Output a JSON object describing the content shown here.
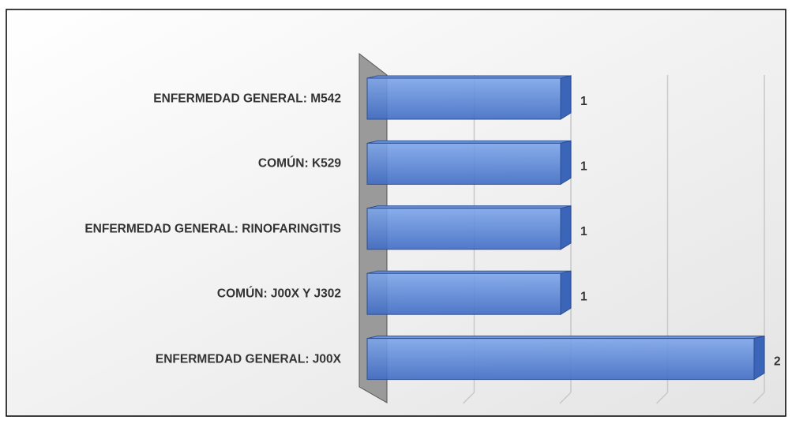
{
  "chart_data": {
    "type": "bar",
    "orientation": "horizontal",
    "categories": [
      "ENFERMEDAD GENERAL: M542",
      "COMÚN: K529",
      "ENFERMEDAD GENERAL: RINOFARINGITIS",
      "COMÚN: J00X Y J302",
      "ENFERMEDAD GENERAL: J00X"
    ],
    "values": [
      1,
      1,
      1,
      1,
      2
    ],
    "color": "#4f7fd6",
    "xlim": [
      0,
      2
    ],
    "xticks": [
      0,
      0.5,
      1,
      1.5,
      2
    ],
    "grid": true
  }
}
